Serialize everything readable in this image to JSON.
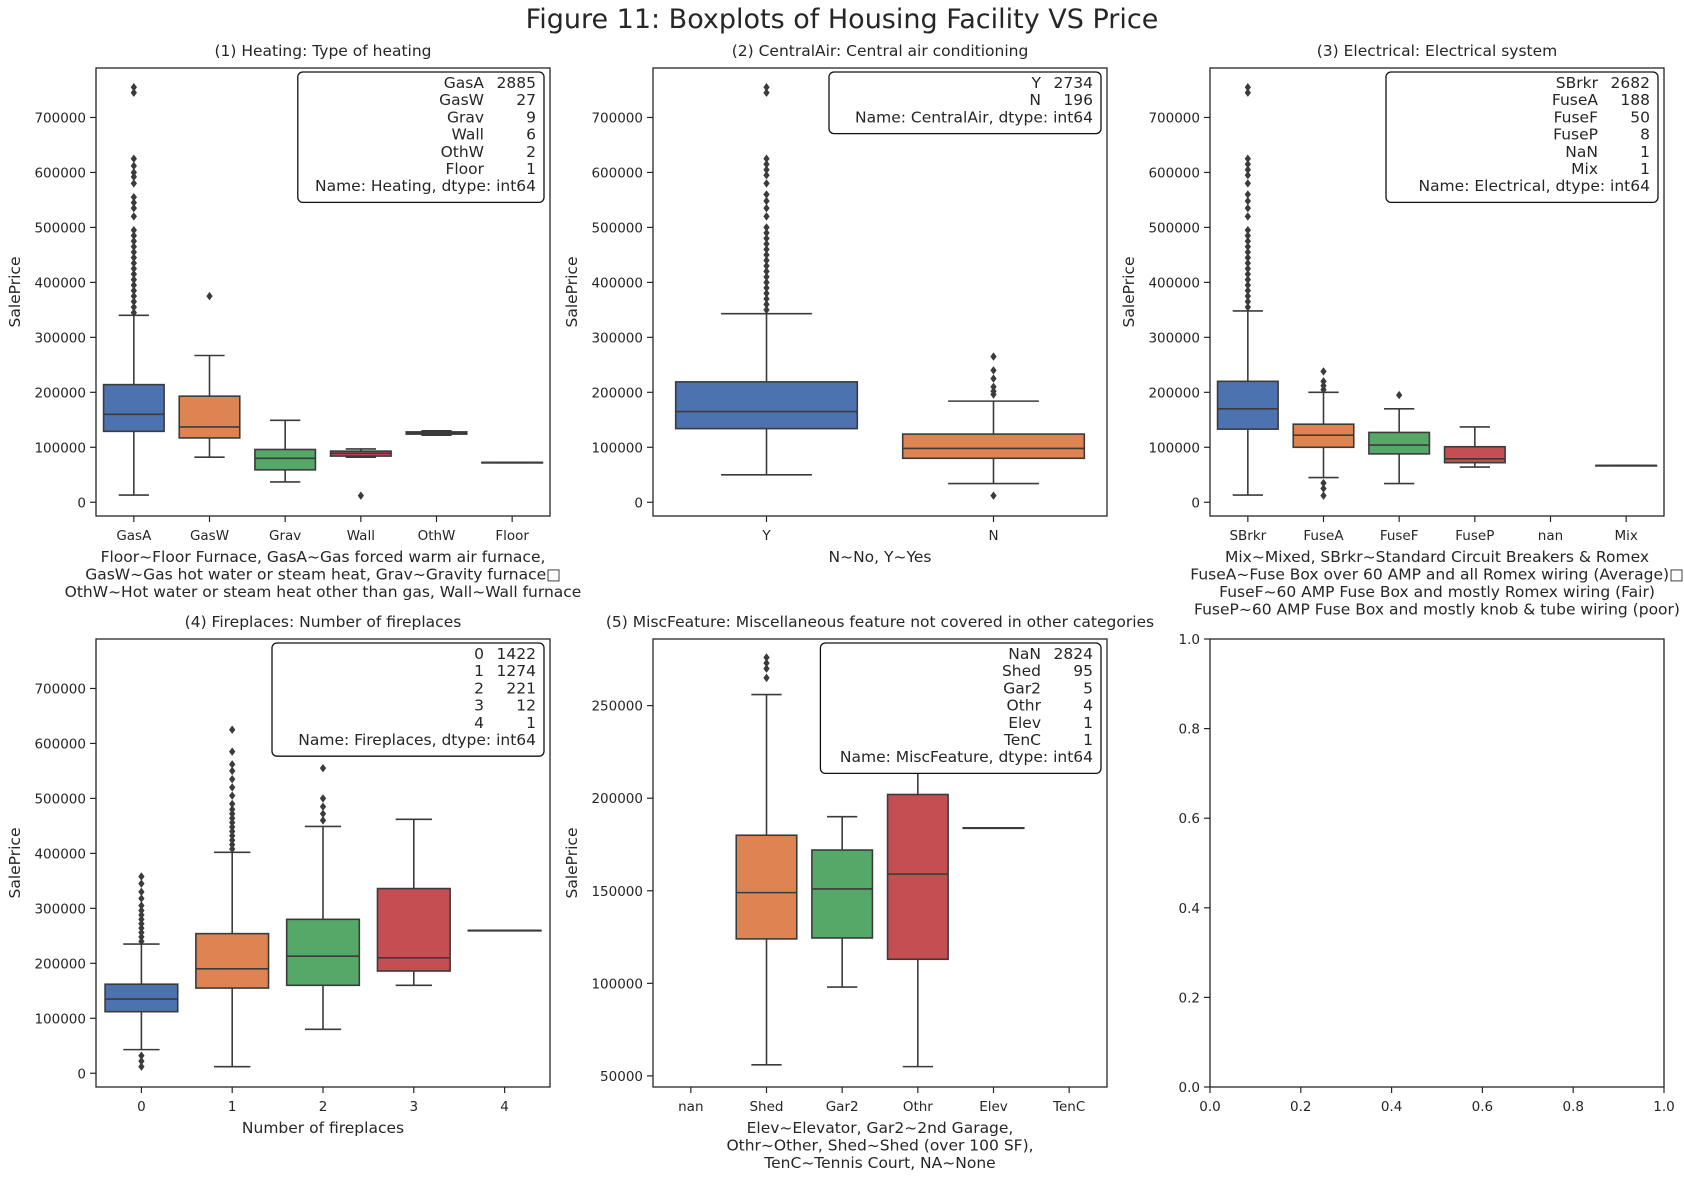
{
  "title": "Figure 11: Boxplots of Housing Facility VS Price",
  "colors": {
    "blue": "#4c72b0",
    "orange": "#dd8452",
    "green": "#55a868",
    "red": "#c44e52",
    "line": "#3b3b3b"
  },
  "chart_data": [
    {
      "type": "box",
      "title": "(1) Heating: Type of heating",
      "ylabel": "SalePrice",
      "xlabel_lines": [
        "Floor~Floor Furnace, GasA~Gas forced warm air furnace,",
        "GasW~Gas hot water or steam heat, Grav~Gravity furnace□",
        "OthW~Hot water or steam heat other than gas, Wall~Wall furnace"
      ],
      "ylim": [
        -25000,
        790000
      ],
      "yticks": [
        0,
        100000,
        200000,
        300000,
        400000,
        500000,
        600000,
        700000
      ],
      "categories": [
        "GasA",
        "GasW",
        "Grav",
        "Wall",
        "OthW",
        "Floor"
      ],
      "boxes": [
        {
          "color": "blue",
          "whislo": 13000,
          "q1": 129000,
          "med": 160000,
          "q3": 214000,
          "whishi": 340000,
          "fliers": [
            345000,
            355000,
            365000,
            375000,
            385000,
            395000,
            405000,
            415000,
            425000,
            435000,
            445000,
            455000,
            465000,
            475000,
            485000,
            495000,
            520000,
            535000,
            545000,
            555000,
            580000,
            592000,
            600000,
            612000,
            625000,
            745000,
            755000
          ]
        },
        {
          "color": "orange",
          "whislo": 82000,
          "q1": 117000,
          "med": 137000,
          "q3": 193000,
          "whishi": 267000,
          "fliers": [
            375000
          ]
        },
        {
          "color": "green",
          "whislo": 37000,
          "q1": 59000,
          "med": 80000,
          "q3": 96000,
          "whishi": 149000,
          "fliers": []
        },
        {
          "color": "red",
          "whislo": 82000,
          "q1": 84000,
          "med": 89000,
          "q3": 93000,
          "whishi": 97000,
          "fliers": [
            12000
          ]
        },
        {
          "color": "purple",
          "whislo": 122000,
          "q1": 124000,
          "med": 126000,
          "q3": 128000,
          "whishi": 130000,
          "fliers": []
        },
        {
          "color": "brown",
          "whislo": 72500,
          "q1": 72500,
          "med": 72500,
          "q3": 72500,
          "whishi": 72500,
          "fliers": []
        }
      ],
      "legend_lines": [
        [
          "GasA",
          "2885"
        ],
        [
          "GasW",
          "27"
        ],
        [
          "Grav",
          "9"
        ],
        [
          "Wall",
          "6"
        ],
        [
          "OthW",
          "2"
        ],
        [
          "Floor",
          "1"
        ]
      ],
      "legend_footer": "Name: Heating, dtype: int64"
    },
    {
      "type": "box",
      "title": "(2) CentralAir: Central air conditioning",
      "ylabel": "SalePrice",
      "xlabel_lines": [
        "N~No, Y~Yes"
      ],
      "ylim": [
        -25000,
        790000
      ],
      "yticks": [
        0,
        100000,
        200000,
        300000,
        400000,
        500000,
        600000,
        700000
      ],
      "categories": [
        "Y",
        "N"
      ],
      "boxes": [
        {
          "color": "blue",
          "whislo": 50000,
          "q1": 134000,
          "med": 165000,
          "q3": 219000,
          "whishi": 343000,
          "fliers": [
            350000,
            360000,
            370000,
            380000,
            390000,
            400000,
            410000,
            420000,
            430000,
            440000,
            450000,
            460000,
            470000,
            480000,
            490000,
            500000,
            520000,
            535000,
            548000,
            560000,
            580000,
            595000,
            605000,
            615000,
            625000,
            745000,
            755000
          ]
        },
        {
          "color": "orange",
          "whislo": 34000,
          "q1": 80000,
          "med": 98000,
          "q3": 124000,
          "whishi": 184000,
          "fliers": [
            12000,
            196000,
            202000,
            210000,
            225000,
            240000,
            265000
          ]
        }
      ],
      "legend_lines": [
        [
          "Y",
          "2734"
        ],
        [
          "N",
          "196"
        ]
      ],
      "legend_footer": "Name: CentralAir, dtype: int64"
    },
    {
      "type": "box",
      "title": "(3) Electrical: Electrical system",
      "ylabel": "SalePrice",
      "xlabel_lines": [
        "Mix~Mixed, SBrkr~Standard Circuit Breakers & Romex",
        "FuseA~Fuse Box over 60 AMP and all Romex wiring (Average)□",
        "FuseF~60 AMP Fuse Box and mostly Romex wiring (Fair)",
        "FuseP~60 AMP Fuse Box and mostly knob & tube wiring (poor)"
      ],
      "ylim": [
        -25000,
        790000
      ],
      "yticks": [
        0,
        100000,
        200000,
        300000,
        400000,
        500000,
        600000,
        700000
      ],
      "categories": [
        "SBrkr",
        "FuseA",
        "FuseF",
        "FuseP",
        "nan",
        "Mix"
      ],
      "boxes": [
        {
          "color": "blue",
          "whislo": 13000,
          "q1": 133000,
          "med": 170000,
          "q3": 220000,
          "whishi": 348000,
          "fliers": [
            355000,
            365000,
            375000,
            385000,
            395000,
            405000,
            415000,
            425000,
            435000,
            445000,
            455000,
            465000,
            475000,
            485000,
            495000,
            520000,
            535000,
            548000,
            560000,
            580000,
            595000,
            605000,
            615000,
            625000,
            745000,
            755000
          ]
        },
        {
          "color": "orange",
          "whislo": 45000,
          "q1": 100000,
          "med": 122000,
          "q3": 142000,
          "whishi": 200000,
          "fliers": [
            12000,
            25000,
            35000,
            205000,
            212000,
            220000,
            238000
          ]
        },
        {
          "color": "green",
          "whislo": 34000,
          "q1": 88000,
          "med": 104000,
          "q3": 127000,
          "whishi": 170000,
          "fliers": [
            195000
          ]
        },
        {
          "color": "red",
          "whislo": 64000,
          "q1": 72000,
          "med": 79000,
          "q3": 101000,
          "whishi": 137000,
          "fliers": []
        },
        null,
        {
          "color": "purple",
          "whislo": 67000,
          "q1": 67000,
          "med": 67000,
          "q3": 67000,
          "whishi": 67000,
          "fliers": []
        }
      ],
      "legend_lines": [
        [
          "SBrkr",
          "2682"
        ],
        [
          "FuseA",
          "188"
        ],
        [
          "FuseF",
          "50"
        ],
        [
          "FuseP",
          "8"
        ],
        [
          "NaN",
          "1"
        ],
        [
          "Mix",
          "1"
        ]
      ],
      "legend_footer": "Name: Electrical, dtype: int64"
    },
    {
      "type": "box",
      "title": "(4) Fireplaces: Number of fireplaces",
      "ylabel": "SalePrice",
      "xlabel_lines": [
        "Number of fireplaces"
      ],
      "ylim": [
        -25000,
        790000
      ],
      "yticks": [
        0,
        100000,
        200000,
        300000,
        400000,
        500000,
        600000,
        700000
      ],
      "categories": [
        "0",
        "1",
        "2",
        "3",
        "4"
      ],
      "boxes": [
        {
          "color": "blue",
          "whislo": 43000,
          "q1": 112000,
          "med": 135000,
          "q3": 162000,
          "whishi": 235000,
          "fliers": [
            12000,
            22000,
            32000,
            240000,
            248000,
            256000,
            264000,
            272000,
            280000,
            288000,
            296000,
            305000,
            318000,
            330000,
            345000,
            358000
          ]
        },
        {
          "color": "orange",
          "whislo": 12000,
          "q1": 155000,
          "med": 190000,
          "q3": 254000,
          "whishi": 402000,
          "fliers": [
            408000,
            416000,
            424000,
            432000,
            440000,
            448000,
            456000,
            464000,
            472000,
            480000,
            490000,
            505000,
            520000,
            535000,
            550000,
            562000,
            585000,
            625000
          ]
        },
        {
          "color": "green",
          "whislo": 80000,
          "q1": 160000,
          "med": 213000,
          "q3": 280000,
          "whishi": 449000,
          "fliers": [
            460000,
            472000,
            485000,
            500000,
            555000
          ]
        },
        {
          "color": "red",
          "whislo": 160000,
          "q1": 186000,
          "med": 210000,
          "q3": 336000,
          "whishi": 462000,
          "fliers": []
        },
        {
          "color": "purple",
          "whislo": 260000,
          "q1": 260000,
          "med": 260000,
          "q3": 260000,
          "whishi": 260000,
          "fliers": []
        }
      ],
      "legend_lines": [
        [
          "0",
          "1422"
        ],
        [
          "1",
          "1274"
        ],
        [
          "2",
          "221"
        ],
        [
          "3",
          "12"
        ],
        [
          "4",
          "1"
        ]
      ],
      "legend_footer": "Name: Fireplaces, dtype: int64"
    },
    {
      "type": "box",
      "title": "(5) MiscFeature: Miscellaneous feature not covered in other categories",
      "ylabel": "SalePrice",
      "xlabel_lines": [
        "Elev~Elevator, Gar2~2nd Garage,",
        "Othr~Other, Shed~Shed (over 100 SF),",
        "TenC~Tennis Court, NA~None"
      ],
      "ylim": [
        44000,
        286000
      ],
      "yticks": [
        50000,
        100000,
        150000,
        200000,
        250000
      ],
      "categories": [
        "nan",
        "Shed",
        "Gar2",
        "Othr",
        "Elev",
        "TenC"
      ],
      "boxes": [
        null,
        {
          "color": "orange",
          "whislo": 56000,
          "q1": 124000,
          "med": 149000,
          "q3": 180000,
          "whishi": 256000,
          "fliers": [
            265000,
            270000,
            273000,
            276000
          ]
        },
        {
          "color": "green",
          "whislo": 98000,
          "q1": 124500,
          "med": 151000,
          "q3": 172000,
          "whishi": 190000,
          "fliers": []
        },
        {
          "color": "red",
          "whislo": 55000,
          "q1": 113000,
          "med": 159000,
          "q3": 202000,
          "whishi": 245000,
          "fliers": []
        },
        {
          "color": "purple",
          "whislo": 184000,
          "q1": 184000,
          "med": 184000,
          "q3": 184000,
          "whishi": 184000,
          "fliers": []
        },
        null
      ],
      "legend_lines": [
        [
          "NaN",
          "2824"
        ],
        [
          "Shed",
          "95"
        ],
        [
          "Gar2",
          "5"
        ],
        [
          "Othr",
          "4"
        ],
        [
          "Elev",
          "1"
        ],
        [
          "TenC",
          "1"
        ]
      ],
      "legend_footer": "Name: MiscFeature, dtype: int64"
    },
    {
      "type": "empty",
      "xlim": [
        0,
        1
      ],
      "ylim": [
        0,
        1
      ],
      "xticks": [
        "0.0",
        "0.2",
        "0.4",
        "0.6",
        "0.8",
        "1.0"
      ],
      "yticks": [
        "0.0",
        "0.2",
        "0.4",
        "0.6",
        "0.8",
        "1.0"
      ]
    }
  ]
}
